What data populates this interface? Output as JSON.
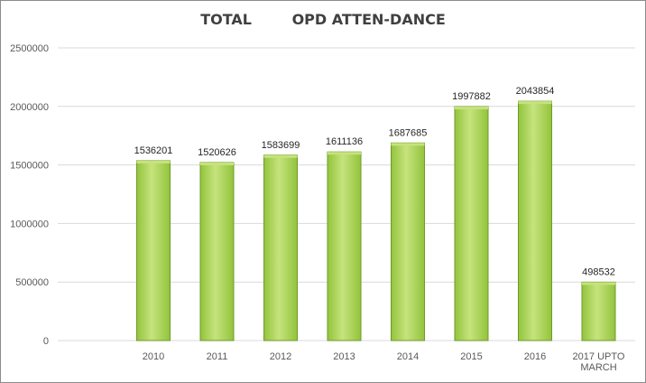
{
  "chart_data": {
    "type": "bar",
    "title": "TOTAL        OPD ATTEN-DANCE",
    "categories": [
      "2010",
      "2011",
      "2012",
      "2013",
      "2014",
      "2015",
      "2016",
      "2017 UPTO MARCH"
    ],
    "category_lines": [
      [
        "2010"
      ],
      [
        "2011"
      ],
      [
        "2012"
      ],
      [
        "2013"
      ],
      [
        "2014"
      ],
      [
        "2015"
      ],
      [
        "2016"
      ],
      [
        "2017 UPTO",
        "MARCH"
      ]
    ],
    "values": [
      1536201,
      1520626,
      1583699,
      1611136,
      1687685,
      1997882,
      2043854,
      498532
    ],
    "ylim": [
      0,
      2500000
    ],
    "yticks": [
      0,
      500000,
      1000000,
      1500000,
      2000000,
      2500000
    ],
    "grid": true,
    "data_labels": true,
    "legend": "none",
    "bar_color": "#92c43c",
    "bar_highlight": "#c6e37d",
    "bar_edge": "#6f9a28",
    "grid_color": "#d9d9d9"
  }
}
